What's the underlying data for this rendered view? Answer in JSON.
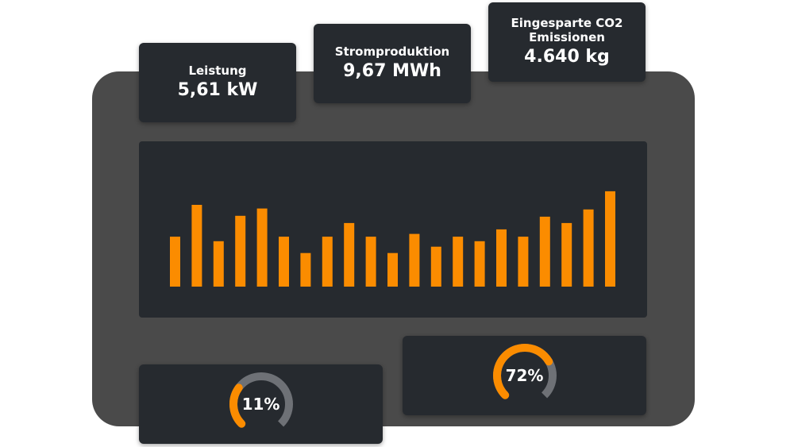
{
  "stats": {
    "power": {
      "label": "Leistung",
      "value": "5,61 kW"
    },
    "production": {
      "label": "Stromproduktion",
      "value": "9,67 MWh"
    },
    "co2": {
      "label": "Eingesparte CO2\nEmissionen",
      "value": "4.640 kg"
    }
  },
  "gauges": [
    {
      "text": "11%",
      "value": 0.11
    },
    {
      "text": "72%",
      "value": 0.72
    }
  ],
  "colors": {
    "accent": "#fb8c00",
    "track": "#6e7176",
    "panel": "#262a2f",
    "frame": "#4a4a4a"
  },
  "chart_data": {
    "type": "bar",
    "values": [
      55,
      90,
      50,
      78,
      86,
      55,
      37,
      55,
      70,
      55,
      37,
      58,
      44,
      55,
      50,
      63,
      55,
      77,
      70,
      85,
      105
    ],
    "ylim": [
      0,
      125
    ],
    "grid": false
  }
}
